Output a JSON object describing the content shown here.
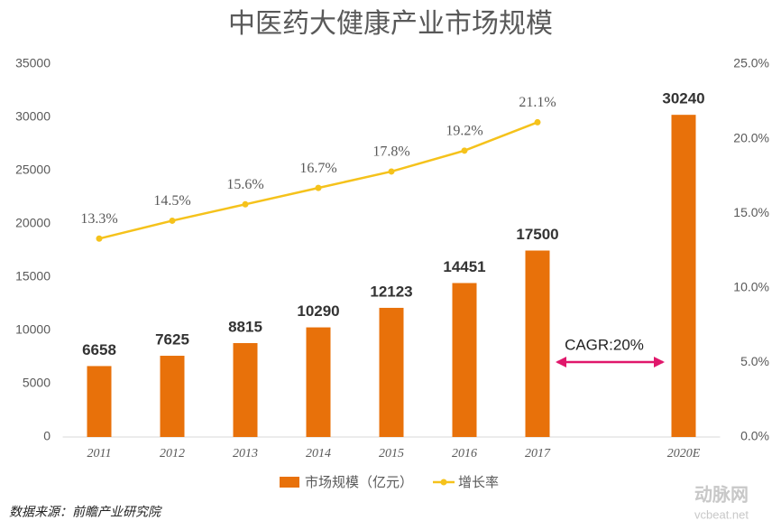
{
  "chart_data": {
    "type": "bar",
    "title": "中医药大健康产业市场规模",
    "categories": [
      "2011",
      "2012",
      "2013",
      "2014",
      "2015",
      "2016",
      "2017",
      null,
      "2020E"
    ],
    "series": [
      {
        "name": "市场规模（亿元）",
        "type": "bar",
        "color": "#e8710a",
        "values": [
          6658,
          7625,
          8815,
          10290,
          12123,
          14451,
          17500,
          null,
          30240
        ]
      },
      {
        "name": "增长率",
        "type": "line",
        "axis": "y2",
        "color": "#f5c21b",
        "values": [
          13.3,
          14.5,
          15.6,
          16.7,
          17.8,
          19.2,
          21.1,
          null,
          null
        ],
        "value_labels": [
          "13.3%",
          "14.5%",
          "15.6%",
          "16.7%",
          "17.8%",
          "19.2%",
          "21.1%",
          null,
          null
        ]
      }
    ],
    "ylim": [
      0,
      35000
    ],
    "yticks": [
      0,
      5000,
      10000,
      15000,
      20000,
      25000,
      30000,
      35000
    ],
    "y2lim": [
      0,
      25
    ],
    "y2ticks": [
      {
        "value": 0,
        "label": "0.0%"
      },
      {
        "value": 5,
        "label": "5.0%"
      },
      {
        "value": 10,
        "label": "10.0%"
      },
      {
        "value": 15,
        "label": "15.0%"
      },
      {
        "value": 20,
        "label": "20.0%"
      },
      {
        "value": 25,
        "label": "25.0%"
      }
    ],
    "grid": false,
    "legend": "bottom",
    "annotation": "CAGR:20%",
    "source": "数据来源：前瞻产业研究院",
    "watermark": [
      "动脉网",
      "vcbeat.net"
    ]
  }
}
